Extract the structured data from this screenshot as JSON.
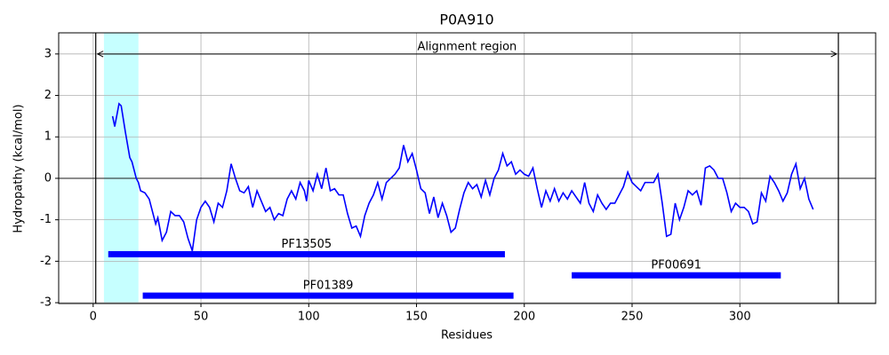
{
  "chart_data": {
    "type": "line",
    "title": "P0A910",
    "xlabel": "Residues",
    "ylabel": "Hydropathy (kcal/mol)",
    "xlim": [
      -16,
      363
    ],
    "ylim": [
      -3.02,
      3.51
    ],
    "xticks": [
      0,
      50,
      100,
      150,
      200,
      250,
      300
    ],
    "yticks": [
      -3,
      -2,
      -1,
      0,
      1,
      2,
      3
    ],
    "grid": true,
    "hline": 0,
    "highlight": {
      "start": 5,
      "end": 21,
      "color": "#c6ffff"
    },
    "alignment": {
      "label": "Alignment region",
      "start": 1.2,
      "end": 345.7,
      "y": 3
    },
    "domains": [
      {
        "name": "PF13505",
        "start": 7,
        "end": 191,
        "y": -1.83,
        "color": "#0000ff"
      },
      {
        "name": "PF00691",
        "start": 222,
        "end": 319,
        "y": -2.34,
        "color": "#0000ff"
      },
      {
        "name": "PF01389",
        "start": 23,
        "end": 195,
        "y": -2.83,
        "color": "#0000ff"
      }
    ],
    "series": [
      {
        "color": "#0000ff",
        "x": [
          9,
          10,
          12,
          13,
          15,
          17,
          18,
          20,
          21,
          22,
          24,
          26,
          28,
          29,
          30,
          32,
          34,
          36,
          38,
          40,
          42,
          44,
          46,
          48,
          50,
          52,
          54,
          56,
          58,
          60,
          62,
          64,
          66,
          68,
          70,
          72,
          74,
          76,
          78,
          80,
          82,
          84,
          86,
          88,
          90,
          92,
          94,
          96,
          98,
          99,
          100,
          102,
          104,
          106,
          108,
          110,
          112,
          114,
          116,
          118,
          120,
          122,
          124,
          126,
          128,
          130,
          132,
          134,
          136,
          138,
          140,
          142,
          144,
          146,
          148,
          150,
          152,
          154,
          156,
          158,
          160,
          162,
          164,
          166,
          168,
          170,
          172,
          174,
          176,
          178,
          180,
          182,
          184,
          186,
          188,
          190,
          192,
          194,
          196,
          198,
          200,
          202,
          204,
          206,
          208,
          210,
          212,
          214,
          216,
          218,
          220,
          222,
          224,
          226,
          228,
          230,
          232,
          234,
          236,
          238,
          240,
          242,
          244,
          246,
          248,
          250,
          252,
          254,
          256,
          258,
          260,
          262,
          264,
          266,
          268,
          270,
          272,
          274,
          276,
          278,
          280,
          282,
          284,
          286,
          288,
          290,
          292,
          294,
          296,
          298,
          300,
          302,
          304,
          306,
          308,
          310,
          312,
          314,
          316,
          318,
          320,
          322,
          324,
          326,
          328,
          330,
          332,
          334
        ],
        "values": [
          1.5,
          1.25,
          1.8,
          1.75,
          1.1,
          0.5,
          0.4,
          0.0,
          -0.1,
          -0.3,
          -0.35,
          -0.5,
          -0.9,
          -1.1,
          -0.95,
          -1.5,
          -1.3,
          -0.8,
          -0.9,
          -0.9,
          -1.05,
          -1.45,
          -1.75,
          -1.0,
          -0.7,
          -0.55,
          -0.7,
          -1.05,
          -0.6,
          -0.7,
          -0.3,
          0.35,
          0.0,
          -0.3,
          -0.35,
          -0.2,
          -0.7,
          -0.3,
          -0.55,
          -0.8,
          -0.7,
          -1.0,
          -0.85,
          -0.9,
          -0.5,
          -0.3,
          -0.5,
          -0.1,
          -0.3,
          -0.55,
          -0.05,
          -0.3,
          0.1,
          -0.25,
          0.25,
          -0.3,
          -0.25,
          -0.4,
          -0.4,
          -0.85,
          -1.2,
          -1.15,
          -1.4,
          -0.9,
          -0.6,
          -0.4,
          -0.1,
          -0.5,
          -0.1,
          0.0,
          0.1,
          0.25,
          0.8,
          0.4,
          0.6,
          0.2,
          -0.25,
          -0.35,
          -0.85,
          -0.45,
          -0.95,
          -0.6,
          -0.9,
          -1.3,
          -1.2,
          -0.75,
          -0.35,
          -0.1,
          -0.25,
          -0.15,
          -0.45,
          -0.05,
          -0.4,
          0.0,
          0.2,
          0.6,
          0.3,
          0.4,
          0.1,
          0.2,
          0.1,
          0.05,
          0.25,
          -0.25,
          -0.7,
          -0.3,
          -0.55,
          -0.25,
          -0.55,
          -0.35,
          -0.5,
          -0.3,
          -0.45,
          -0.6,
          -0.1,
          -0.6,
          -0.8,
          -0.4,
          -0.6,
          -0.75,
          -0.6,
          -0.6,
          -0.4,
          -0.2,
          0.15,
          -0.1,
          -0.2,
          -0.3,
          -0.1,
          -0.1,
          -0.1,
          0.1,
          -0.6,
          -1.4,
          -1.35,
          -0.6,
          -1.0,
          -0.7,
          -0.3,
          -0.4,
          -0.3,
          -0.65,
          0.25,
          0.3,
          0.2,
          0.0,
          0.0,
          -0.35,
          -0.8,
          -0.6,
          -0.7,
          -0.7,
          -0.8,
          -1.1,
          -1.05,
          -0.35,
          -0.55,
          0.05,
          -0.1,
          -0.3,
          -0.55,
          -0.35,
          0.1,
          0.35,
          -0.25,
          0.0,
          -0.5,
          -0.75
        ]
      }
    ]
  }
}
